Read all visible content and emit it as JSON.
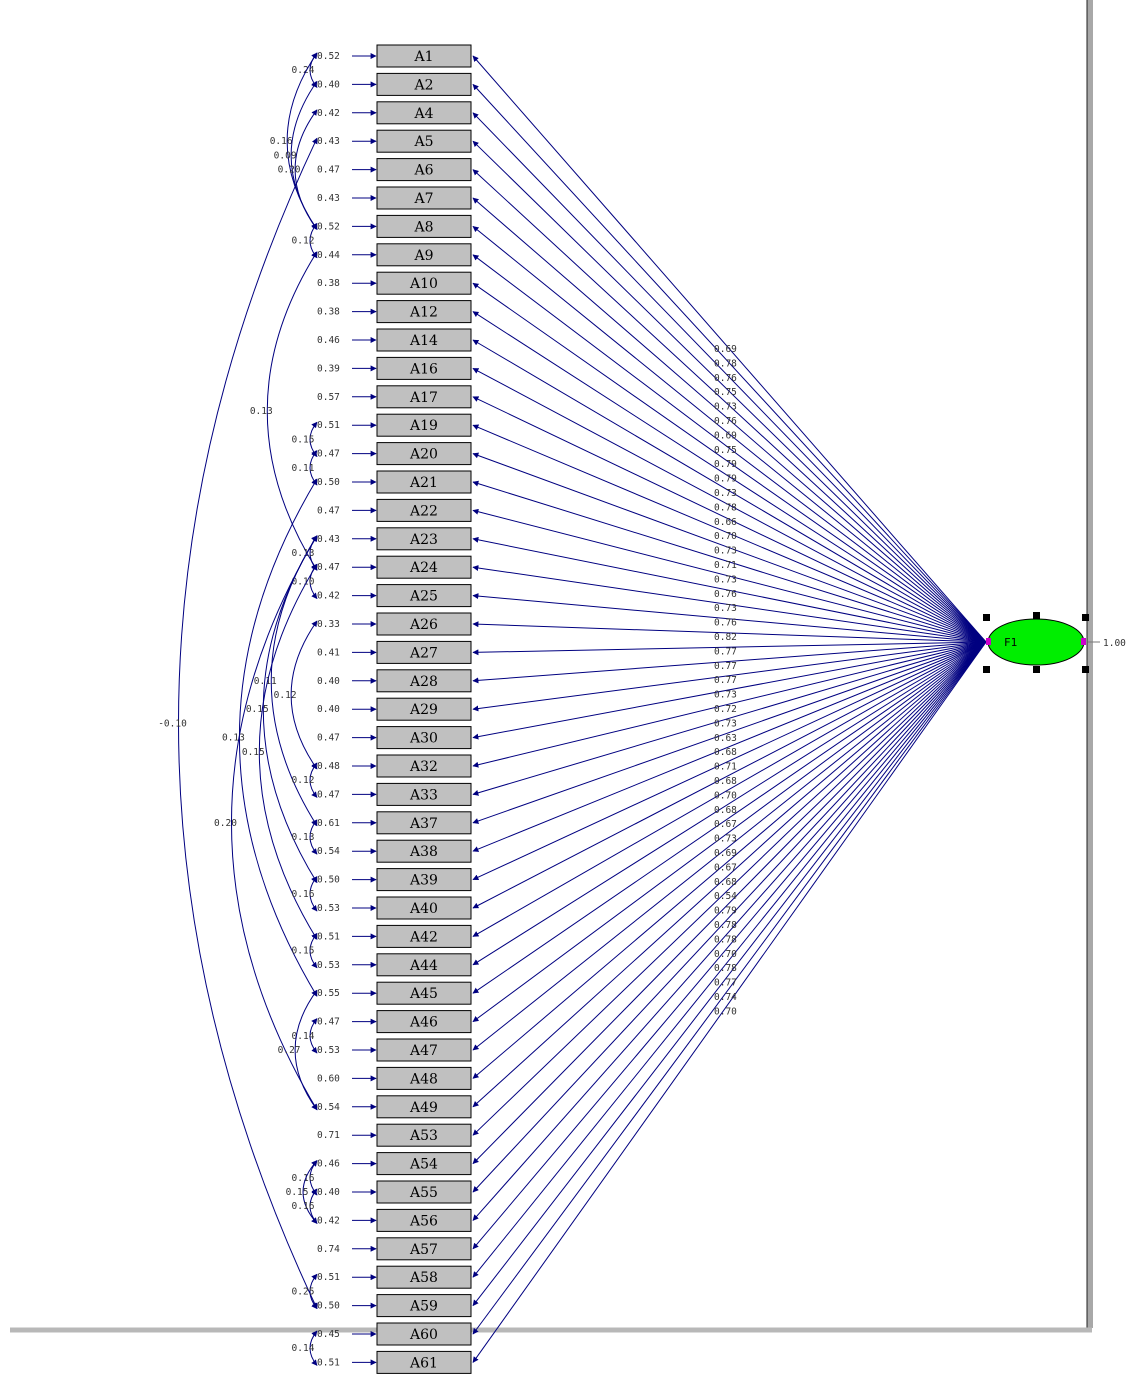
{
  "factor": {
    "label": "F1",
    "variance": "1.00"
  },
  "variables": [
    {
      "name": "A1",
      "error": "0.52"
    },
    {
      "name": "A2",
      "error": "0.40"
    },
    {
      "name": "A4",
      "error": "0.42"
    },
    {
      "name": "A5",
      "error": "0.43"
    },
    {
      "name": "A6",
      "error": "0.47"
    },
    {
      "name": "A7",
      "error": "0.43"
    },
    {
      "name": "A8",
      "error": "0.52"
    },
    {
      "name": "A9",
      "error": "0.44"
    },
    {
      "name": "A10",
      "error": "0.38"
    },
    {
      "name": "A12",
      "error": "0.38"
    },
    {
      "name": "A14",
      "error": "0.46"
    },
    {
      "name": "A16",
      "error": "0.39"
    },
    {
      "name": "A17",
      "error": "0.57"
    },
    {
      "name": "A19",
      "error": "0.51"
    },
    {
      "name": "A20",
      "error": "0.47"
    },
    {
      "name": "A21",
      "error": "0.50"
    },
    {
      "name": "A22",
      "error": "0.47"
    },
    {
      "name": "A23",
      "error": "0.43"
    },
    {
      "name": "A24",
      "error": "0.47"
    },
    {
      "name": "A25",
      "error": "0.42"
    },
    {
      "name": "A26",
      "error": "0.33"
    },
    {
      "name": "A27",
      "error": "0.41"
    },
    {
      "name": "A28",
      "error": "0.40"
    },
    {
      "name": "A29",
      "error": "0.40"
    },
    {
      "name": "A30",
      "error": "0.47"
    },
    {
      "name": "A32",
      "error": "0.48"
    },
    {
      "name": "A33",
      "error": "0.47"
    },
    {
      "name": "A37",
      "error": "0.61"
    },
    {
      "name": "A38",
      "error": "0.54"
    },
    {
      "name": "A39",
      "error": "0.50"
    },
    {
      "name": "A40",
      "error": "0.53"
    },
    {
      "name": "A42",
      "error": "0.51"
    },
    {
      "name": "A44",
      "error": "0.53"
    },
    {
      "name": "A45",
      "error": "0.55"
    },
    {
      "name": "A46",
      "error": "0.47"
    },
    {
      "name": "A47",
      "error": "0.53"
    },
    {
      "name": "A48",
      "error": "0.60"
    },
    {
      "name": "A49",
      "error": "0.54"
    },
    {
      "name": "A53",
      "error": "0.71"
    },
    {
      "name": "A54",
      "error": "0.46"
    },
    {
      "name": "A55",
      "error": "0.40"
    },
    {
      "name": "A56",
      "error": "0.42"
    },
    {
      "name": "A57",
      "error": "0.74"
    },
    {
      "name": "A58",
      "error": "0.51"
    },
    {
      "name": "A59",
      "error": "0.50"
    },
    {
      "name": "A60",
      "error": "0.45"
    },
    {
      "name": "A61",
      "error": "0.51"
    }
  ],
  "loadings": [
    "0.69",
    "0.78",
    "0.76",
    "0.75",
    "0.73",
    "0.76",
    "0.69",
    "0.75",
    "0.79",
    "0.79",
    "0.73",
    "0.78",
    "0.66",
    "0.70",
    "0.73",
    "0.71",
    "0.73",
    "0.76",
    "0.73",
    "0.76",
    "0.82",
    "0.77",
    "0.77",
    "0.77",
    "0.73",
    "0.72",
    "0.73",
    "0.63",
    "0.68",
    "0.71",
    "0.68",
    "0.70",
    "0.68",
    "0.67",
    "0.73",
    "0.69",
    "0.67",
    "0.68",
    "0.54",
    "0.79",
    "0.78",
    "0.78",
    "0.70",
    "0.78",
    "0.77",
    "0.74",
    "0.70"
  ],
  "covariances": [
    {
      "from": "A1",
      "to": "A2",
      "label": "0.24"
    },
    {
      "from": "A1",
      "to": "A8",
      "label": "0.16"
    },
    {
      "from": "A2",
      "to": "A8",
      "label": "0.09"
    },
    {
      "from": "A4",
      "to": "A8",
      "label": "0.20"
    },
    {
      "from": "A8",
      "to": "A9",
      "label": "0.12"
    },
    {
      "from": "A9",
      "to": "A24",
      "label": "0.13"
    },
    {
      "from": "A19",
      "to": "A20",
      "label": "0.15"
    },
    {
      "from": "A20",
      "to": "A21",
      "label": "0.11"
    },
    {
      "from": "A23",
      "to": "A24",
      "label": "0.13"
    },
    {
      "from": "A24",
      "to": "A25",
      "label": "0.10"
    },
    {
      "from": "A26",
      "to": "A32",
      "label": "0.12"
    },
    {
      "from": "A21",
      "to": "A45",
      "label": "0.13"
    },
    {
      "from": "A23",
      "to": "A37",
      "label": "0.11"
    },
    {
      "from": "A23",
      "to": "A39",
      "label": "0.15"
    },
    {
      "from": "A24",
      "to": "A42",
      "label": "0.15"
    },
    {
      "from": "A23",
      "to": "A49",
      "label": "0.20"
    },
    {
      "from": "A32",
      "to": "A33",
      "label": "0.12"
    },
    {
      "from": "A37",
      "to": "A38",
      "label": "0.13"
    },
    {
      "from": "A39",
      "to": "A40",
      "label": "0.16"
    },
    {
      "from": "A42",
      "to": "A44",
      "label": "0.15"
    },
    {
      "from": "A46",
      "to": "A47",
      "label": "0.14"
    },
    {
      "from": "A45",
      "to": "A49",
      "label": "0.27"
    },
    {
      "from": "A54",
      "to": "A55",
      "label": "0.16"
    },
    {
      "from": "A54",
      "to": "A56",
      "label": "0.15"
    },
    {
      "from": "A55",
      "to": "A56",
      "label": "0.16"
    },
    {
      "from": "A5",
      "to": "A59",
      "label": "-0.10"
    },
    {
      "from": "A58",
      "to": "A59",
      "label": "0.25"
    },
    {
      "from": "A60",
      "to": "A61",
      "label": "0.14"
    }
  ],
  "colors": {
    "path": "#000080",
    "box_fill": "#c0c0c0",
    "factor_fill": "#00ee00",
    "frame": "#a8a8a8"
  }
}
